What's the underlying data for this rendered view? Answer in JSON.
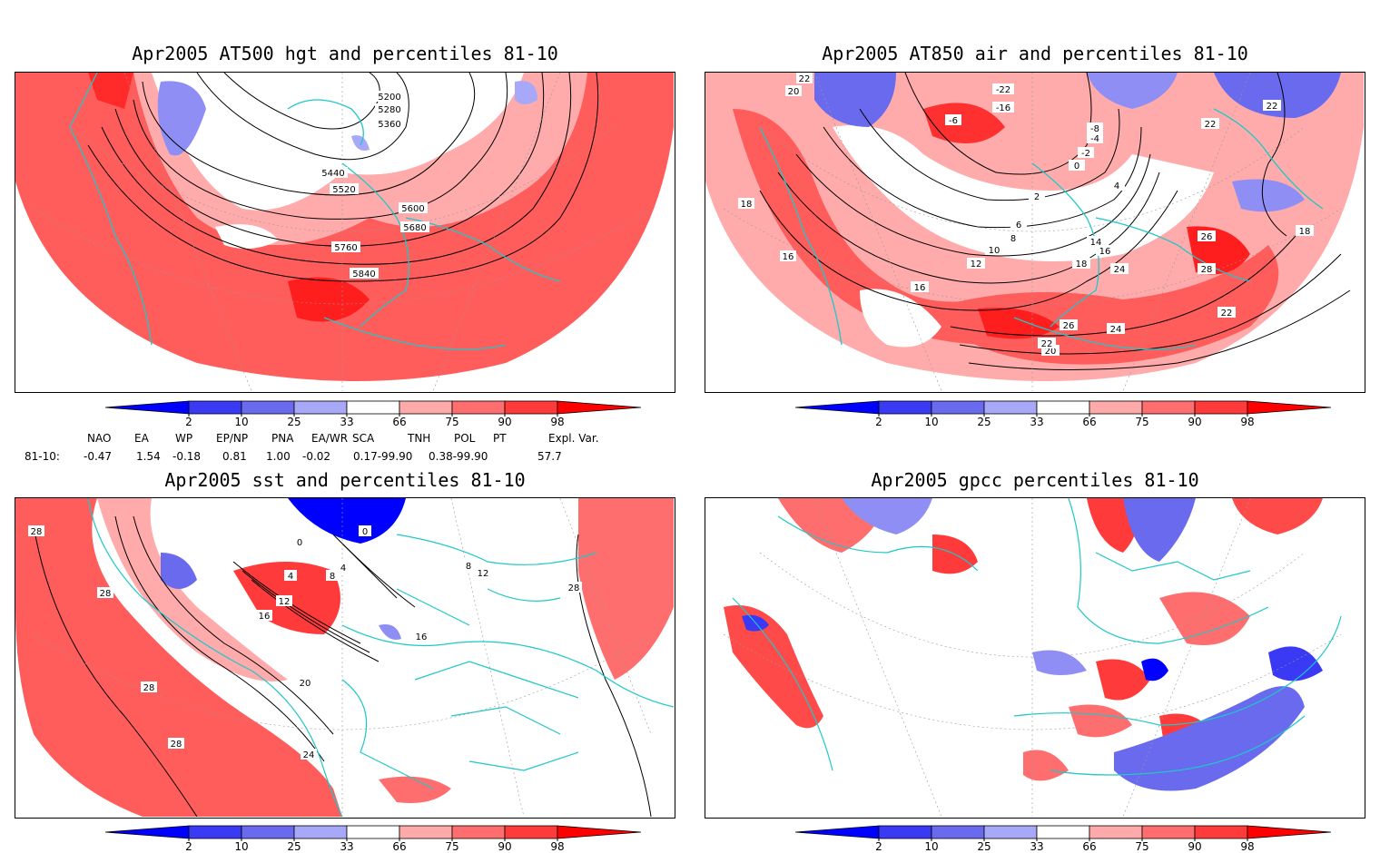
{
  "panels": [
    {
      "title": "Apr2005 AT500 hgt and percentiles 81-10",
      "contour_labels": [
        "5200",
        "5280",
        "5360",
        "5440",
        "5520",
        "5600",
        "5680",
        "5760",
        "5840"
      ]
    },
    {
      "title": "Apr2005 AT850 air and percentiles 81-10",
      "contour_labels": [
        "22",
        "20",
        "18",
        "16",
        "-22",
        "-16",
        "-6",
        "-8",
        "-4",
        "-2",
        "0",
        "2",
        "4",
        "6",
        "8",
        "10",
        "12",
        "14",
        "16",
        "18",
        "20",
        "22",
        "24",
        "26",
        "28",
        "24",
        "22",
        "18"
      ]
    },
    {
      "title": "Apr2005 sst and percentiles 81-10",
      "contour_labels": [
        "28",
        "28",
        "28",
        "28",
        "24",
        "20",
        "16",
        "12",
        "8",
        "4",
        "4",
        "0",
        "0",
        "16",
        "8",
        "12",
        "28"
      ]
    },
    {
      "title": "Apr2005 gpcc percentiles 81-10",
      "contour_labels": []
    }
  ],
  "colorbar": {
    "ticks": [
      "2",
      "10",
      "25",
      "33",
      "66",
      "75",
      "90",
      "98"
    ],
    "colors": [
      "#0000ff",
      "#3a3af5",
      "#6a6aee",
      "#a8a8f8",
      "#ffffff",
      "#ffaaaa",
      "#ff6e6e",
      "#ff3a3a",
      "#ff0000"
    ]
  },
  "indices": {
    "headers": [
      "NAO",
      "EA",
      "WP",
      "EP/NP",
      "PNA",
      "EA/WR",
      "SCA",
      "TNH",
      "POL",
      "PT",
      "Expl. Var."
    ],
    "row_label": "81-10:",
    "values": [
      "-0.47",
      "1.54",
      "-0.18",
      "0.81",
      "1.00",
      "-0.02",
      "0.17-99.90",
      "0.38-99.90",
      "57.7"
    ]
  }
}
